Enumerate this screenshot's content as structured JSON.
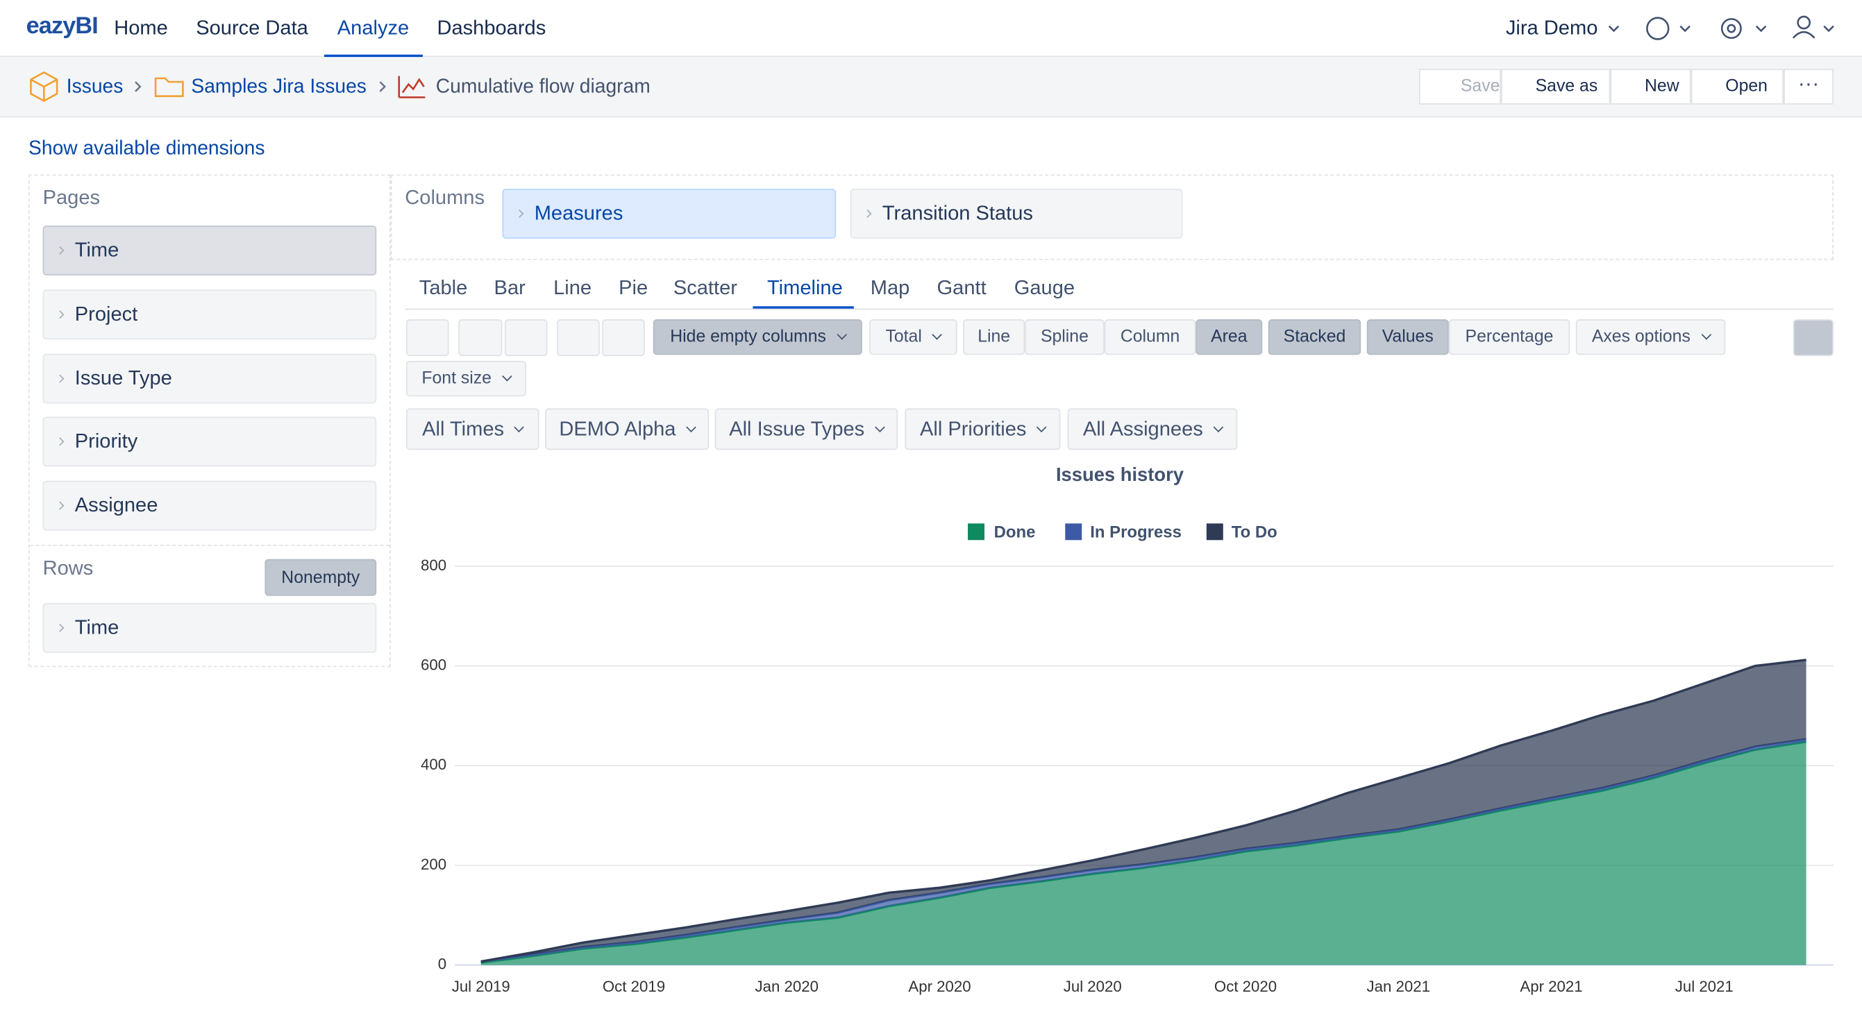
{
  "nav": {
    "logo": "eazyBI",
    "items": [
      "Home",
      "Source Data",
      "Analyze",
      "Dashboards"
    ],
    "active": 2,
    "account": "Jira Demo"
  },
  "breadcrumb": [
    "Issues",
    "Samples Jira Issues",
    "Cumulative flow diagram"
  ],
  "actions": [
    "Save",
    "Save as",
    "New",
    "Open"
  ],
  "show_dimensions": "Show available dimensions",
  "pages": {
    "label": "Pages",
    "items": [
      "Time",
      "Project",
      "Issue Type",
      "Priority",
      "Assignee"
    ]
  },
  "rows": {
    "label": "Rows",
    "button": "Nonempty",
    "items": [
      "Time"
    ]
  },
  "columns": {
    "label": "Columns",
    "items": [
      "Measures",
      "Transition Status"
    ]
  },
  "view_tabs": {
    "items": [
      "Table",
      "Bar",
      "Line",
      "Pie",
      "Scatter",
      "Timeline",
      "Map",
      "Gantt",
      "Gauge"
    ],
    "active": 5
  },
  "toolbar": {
    "items": [
      "Hide empty columns",
      "Total",
      "Line",
      "Spline",
      "Column",
      "Area",
      "Stacked",
      "Values",
      "Percentage",
      "Axes options",
      "Font size"
    ],
    "pressed": [
      0,
      5,
      6,
      7
    ]
  },
  "filters": [
    "All Times",
    "DEMO Alpha",
    "All Issue Types",
    "All Priorities",
    "All Assignees"
  ],
  "chart_data": {
    "type": "stacked-area",
    "title": "Issues history",
    "categories": [
      "Jul 2019",
      null,
      null,
      "Oct 2019",
      null,
      null,
      "Jan 2020",
      null,
      null,
      "Apr 2020",
      null,
      null,
      "Jul 2020",
      null,
      null,
      "Oct 2020",
      null,
      null,
      "Jan 2021",
      null,
      null,
      "Apr 2021",
      null,
      null,
      "Jul 2021",
      null,
      null
    ],
    "series": [
      {
        "name": "Done",
        "color": "#0e8a5f",
        "values": [
          5,
          18,
          33,
          42,
          55,
          70,
          85,
          95,
          118,
          135,
          155,
          168,
          183,
          195,
          210,
          228,
          240,
          255,
          268,
          288,
          310,
          330,
          350,
          375,
          405,
          432,
          448
        ]
      },
      {
        "name": "In Progress",
        "color": "#3c5aa6",
        "values": [
          2,
          3,
          3,
          4,
          5,
          6,
          6,
          10,
          12,
          10,
          8,
          8,
          8,
          7,
          6,
          5,
          5,
          4,
          4,
          4,
          4,
          5,
          5,
          5,
          5,
          6,
          5
        ]
      },
      {
        "name": "To Do",
        "color": "#2f3b55",
        "values": [
          0,
          4,
          9,
          14,
          15,
          16,
          17,
          20,
          15,
          10,
          7,
          14,
          19,
          30,
          39,
          47,
          65,
          86,
          103,
          113,
          126,
          135,
          147,
          150,
          155,
          162,
          159
        ]
      }
    ],
    "ylim": [
      0,
      800
    ],
    "yticks": [
      0,
      200,
      400,
      600,
      800
    ],
    "grid": true
  }
}
